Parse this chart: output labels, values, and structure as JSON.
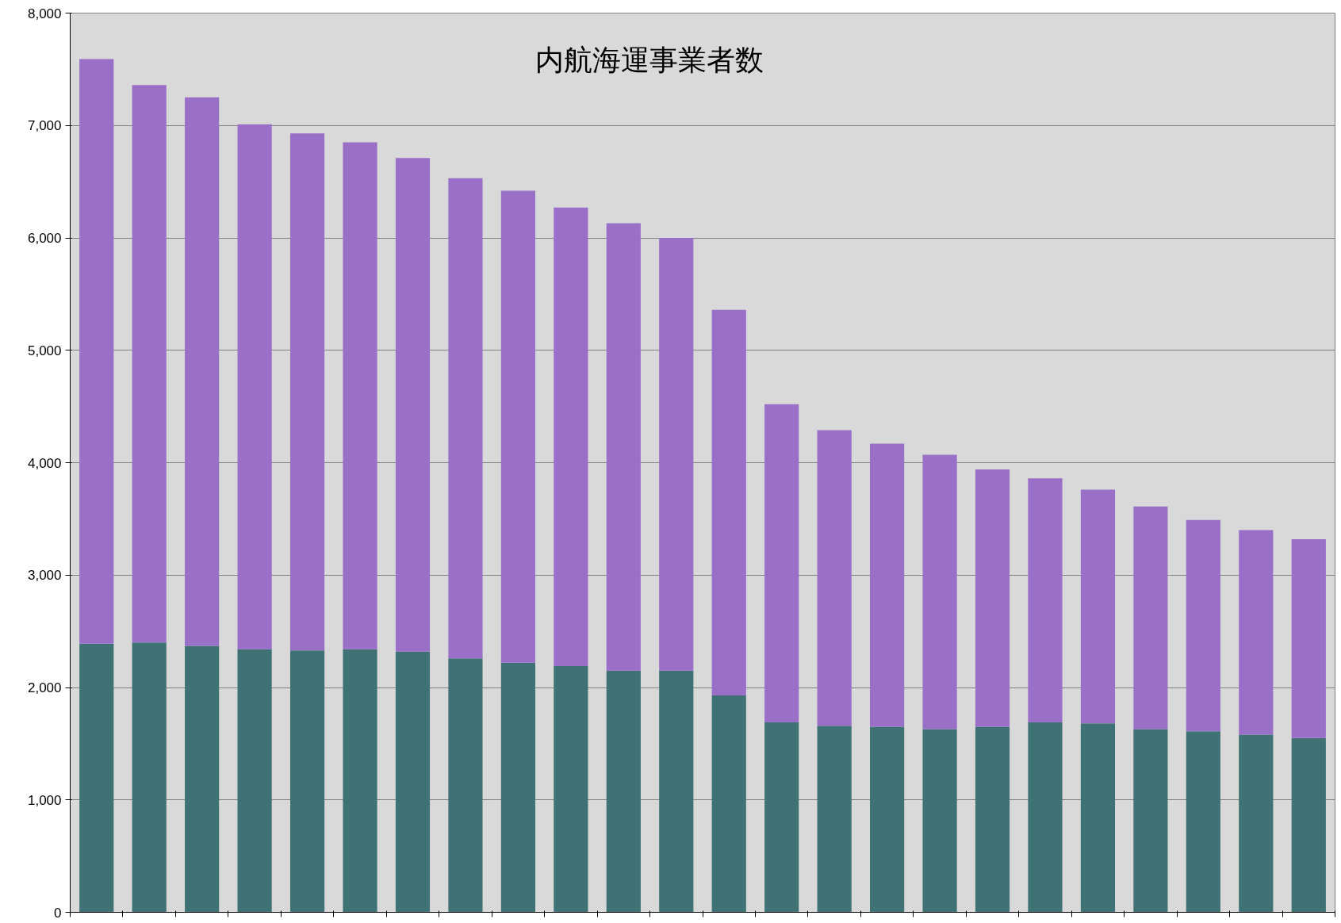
{
  "chart_data": {
    "type": "bar",
    "title": "内航海運事業者数",
    "stacked": true,
    "categories": [
      null,
      null,
      null,
      null,
      null,
      null,
      null,
      null,
      null,
      null,
      null,
      null,
      null,
      null,
      null,
      null,
      null,
      null,
      null,
      null,
      null,
      null,
      null,
      null
    ],
    "series": [
      {
        "color": "#3f7275",
        "values": [
          2390,
          2400,
          2370,
          2340,
          2330,
          2340,
          2320,
          2260,
          2220,
          2190,
          2150,
          2150,
          1930,
          1690,
          1660,
          1650,
          1630,
          1650,
          1690,
          1680,
          1630,
          1610,
          1580,
          1550
        ]
      },
      {
        "color": "#9a6fc8",
        "values": [
          5200,
          4960,
          4880,
          4670,
          4600,
          4510,
          4390,
          4270,
          4200,
          4080,
          3980,
          3850,
          3430,
          2830,
          2630,
          2520,
          2440,
          2290,
          2170,
          2080,
          1980,
          1880,
          1820,
          1770
        ]
      }
    ],
    "ylim": [
      0,
      8000
    ],
    "yticks": [
      0,
      {
        "value": 1000,
        "label": "1,000"
      },
      {
        "value": 2000,
        "label": "2,000"
      },
      {
        "value": 3000,
        "label": "3,000"
      },
      {
        "value": 4000,
        "label": "4,000"
      },
      {
        "value": 5000,
        "label": "5,000"
      },
      {
        "value": 6000,
        "label": "6,000"
      },
      {
        "value": 7000,
        "label": "7,000"
      },
      {
        "value": 8000,
        "label": "8,000"
      }
    ],
    "grid": "y",
    "tick_labels": "y"
  }
}
